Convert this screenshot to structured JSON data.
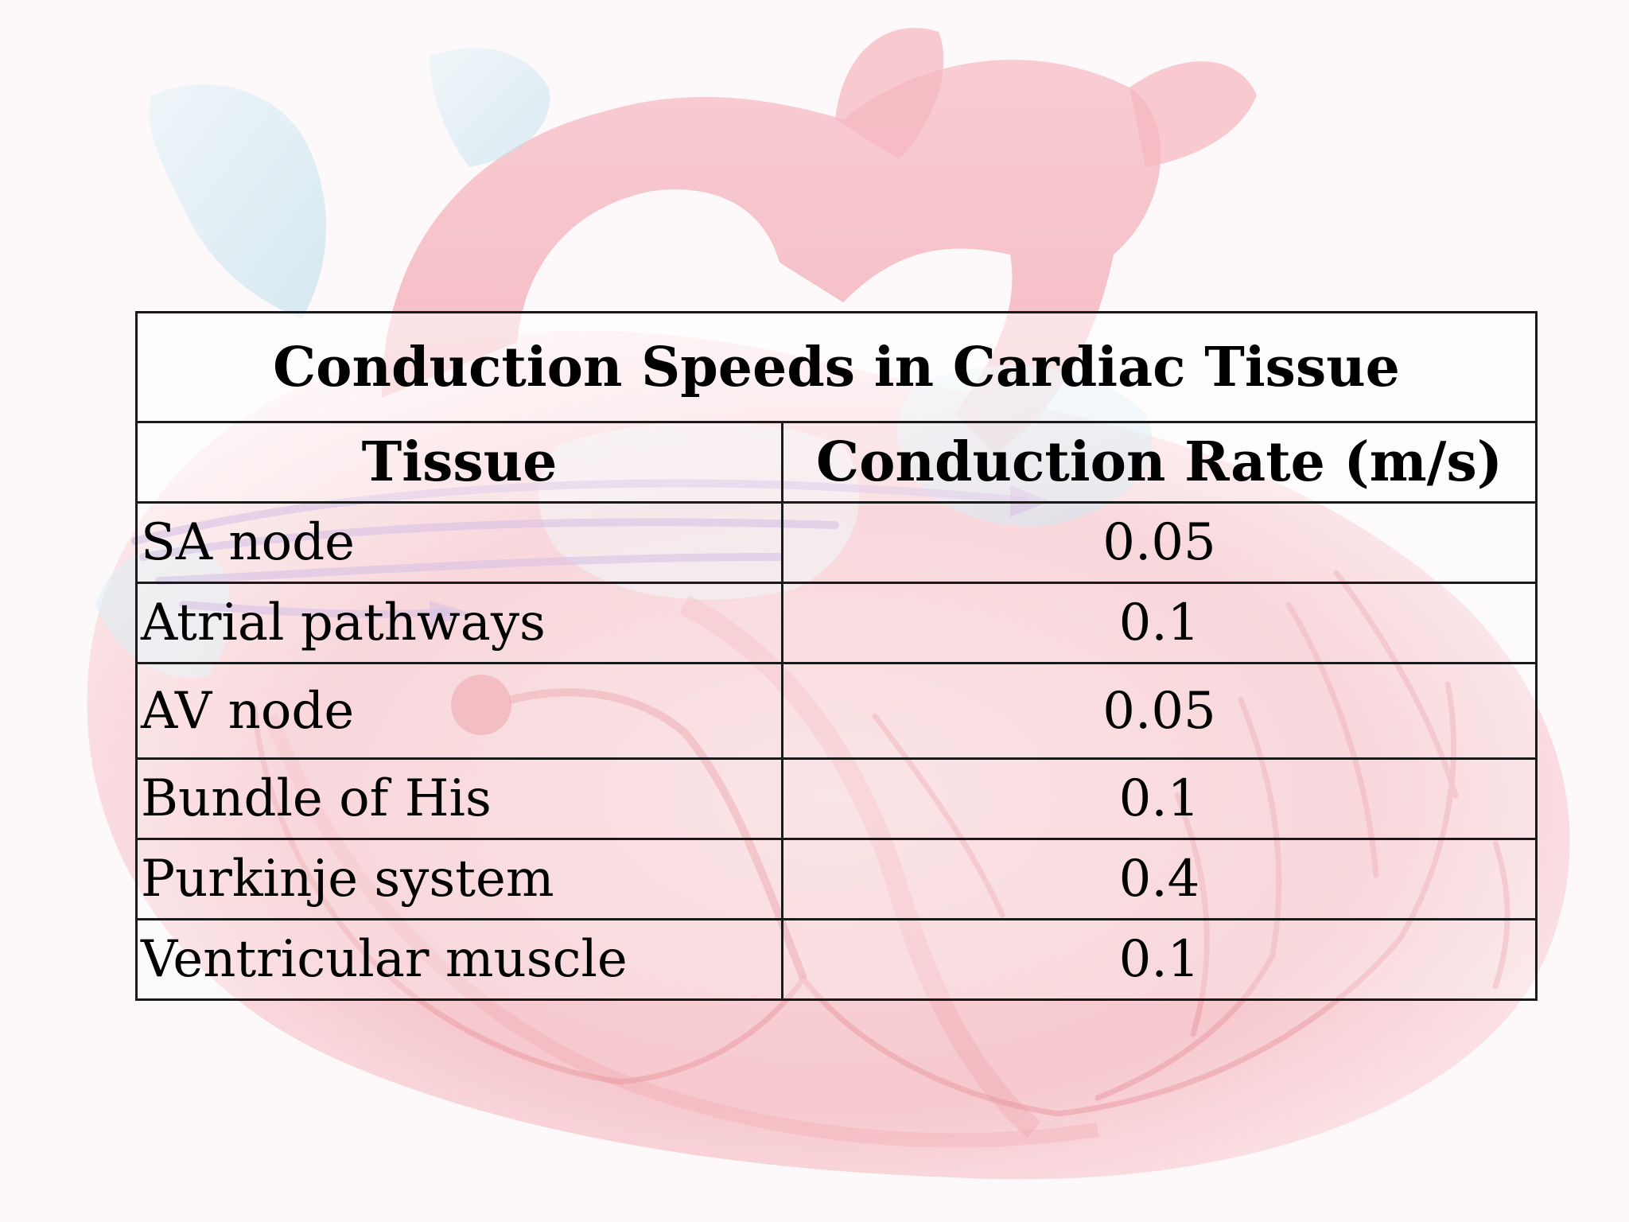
{
  "slide": {
    "background_image": "heart-conduction-illustration",
    "colors": {
      "heart_red": "#e8737f",
      "heart_light": "#f4b6bd",
      "vessel_blue": "#b9dcea",
      "pathway_purple": "#b48fd6"
    }
  },
  "table": {
    "title": "Conduction Speeds in Cardiac Tissue",
    "headers": [
      "Tissue",
      "Conduction Rate (m/s)"
    ],
    "rows": [
      {
        "tissue": "SA node",
        "rate": "0.05"
      },
      {
        "tissue": "Atrial pathways",
        "rate": "0.1"
      },
      {
        "tissue": "AV node",
        "rate": "0.05"
      },
      {
        "tissue": "Bundle of His",
        "rate": "0.1"
      },
      {
        "tissue": "Purkinje system",
        "rate": "0.4"
      },
      {
        "tissue": "Ventricular muscle",
        "rate": "0.1"
      }
    ]
  }
}
